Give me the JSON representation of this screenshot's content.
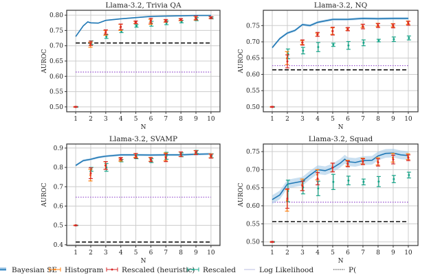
{
  "colors": {
    "bayesian": "#1f77b4",
    "band": "#a6cbe8",
    "histogram": "#ff7f0e",
    "heuristic": "#d62728",
    "rescaled": "#17a589",
    "dashed": "#111111",
    "dotted": "#9b59d0",
    "loglik": "#c5c8e6",
    "grid": "#cccccc"
  },
  "legend": [
    {
      "label": "Bayesian SE",
      "kind": "band"
    },
    {
      "label": "Histogram",
      "kind": "histogram"
    },
    {
      "label": "Rescaled (heuristic)",
      "kind": "heuristic"
    },
    {
      "label": "Rescaled",
      "kind": "rescaled"
    },
    {
      "label": "Log Likelihood",
      "kind": "loglik"
    },
    {
      "label": "P(",
      "kind": "dotted"
    }
  ],
  "chart_data": [
    {
      "type": "line",
      "title": "Llama-3.2, Trivia QA",
      "xlabel": "N",
      "ylabel": "AUROC",
      "ylim": [
        0.484,
        0.816
      ],
      "xlim": [
        0.4,
        10.6
      ],
      "xticks": [
        1,
        2,
        3,
        4,
        5,
        6,
        7,
        8,
        9,
        10
      ],
      "yticks": [
        "0.50",
        "0.55",
        "0.60",
        "0.65",
        "0.70",
        "0.75",
        "0.80"
      ],
      "grid": true,
      "bayesian": {
        "x": [
          1,
          1.5,
          1.8,
          2,
          2.5,
          3,
          4,
          5,
          6,
          7,
          8,
          9,
          10
        ],
        "y": [
          0.73,
          0.765,
          0.778,
          0.775,
          0.774,
          0.783,
          0.788,
          0.792,
          0.796,
          0.797,
          0.798,
          0.799,
          0.799
        ],
        "band": 0.002
      },
      "histogram": {
        "y": [
          0.5,
          0.703,
          0.742,
          0.76,
          0.776,
          0.778,
          0.781,
          0.785,
          0.79,
          0.792
        ],
        "err": [
          0.001,
          0.008,
          0.008,
          0.01,
          0.004,
          0.008,
          0.004,
          0.003,
          0.006,
          0.003
        ]
      },
      "heuristic": {
        "y": [
          0.5,
          0.708,
          0.745,
          0.762,
          0.777,
          0.782,
          0.782,
          0.786,
          0.791,
          0.792
        ],
        "err": [
          0.001,
          0.007,
          0.007,
          0.009,
          0.004,
          0.008,
          0.004,
          0.003,
          0.006,
          0.003
        ]
      },
      "rescaled": {
        "y": [
          0.5,
          0.71,
          0.73,
          0.748,
          0.765,
          0.772,
          0.775,
          0.779,
          0.787,
          0.791
        ],
        "err": [
          0.001,
          0.006,
          0.006,
          0.005,
          0.004,
          0.008,
          0.006,
          0.004,
          0.005,
          0.003
        ]
      },
      "dashed": 0.709,
      "dotted": 0.614
    },
    {
      "type": "line",
      "title": "Llama-3.2, NQ",
      "xlabel": "N",
      "ylabel": "AUROC",
      "ylim": [
        0.485,
        0.797
      ],
      "xlim": [
        0.41,
        10.64
      ],
      "xticks": [
        1,
        2,
        3,
        4,
        5,
        6,
        7,
        8,
        9,
        10
      ],
      "yticks": [
        "0.50",
        "0.55",
        "0.60",
        "0.65",
        "0.70",
        "0.75"
      ],
      "grid": true,
      "bayesian": {
        "x": [
          1,
          1.5,
          2,
          2.5,
          3,
          3.5,
          4,
          5,
          6,
          7,
          8,
          9,
          10
        ],
        "y": [
          0.682,
          0.71,
          0.727,
          0.735,
          0.753,
          0.75,
          0.76,
          0.769,
          0.769,
          0.772,
          0.771,
          0.772,
          0.772
        ],
        "band": 0.004
      },
      "histogram": {
        "y": [
          0.5,
          0.65,
          0.698,
          0.722,
          0.733,
          0.739,
          0.749,
          0.752,
          0.751,
          0.759
        ],
        "err": [
          0.001,
          0.02,
          0.006,
          0.005,
          0.01,
          0.004,
          0.005,
          0.005,
          0.005,
          0.005
        ]
      },
      "heuristic": {
        "y": [
          0.5,
          0.64,
          0.698,
          0.723,
          0.733,
          0.739,
          0.747,
          0.75,
          0.749,
          0.757
        ],
        "err": [
          0.001,
          0.02,
          0.008,
          0.006,
          0.012,
          0.005,
          0.007,
          0.006,
          0.006,
          0.006
        ]
      },
      "rescaled": {
        "y": [
          0.5,
          0.663,
          0.673,
          0.684,
          0.691,
          0.689,
          0.697,
          0.704,
          0.708,
          0.712
        ],
        "err": [
          0.001,
          0.015,
          0.01,
          0.014,
          0.005,
          0.012,
          0.009,
          0.004,
          0.007,
          0.006
        ]
      },
      "dashed": 0.614,
      "dotted": 0.627
    },
    {
      "type": "line",
      "title": "Llama-3.2, SVAMP",
      "xlabel": "N",
      "ylabel": "AUROC",
      "ylim": [
        0.396,
        0.921
      ],
      "xlim": [
        0.4,
        10.6
      ],
      "xticks": [
        1,
        2,
        3,
        4,
        5,
        6,
        7,
        8,
        9,
        10
      ],
      "yticks": [
        "0.4",
        "0.5",
        "0.6",
        "0.7",
        "0.8",
        "0.9"
      ],
      "grid": true,
      "bayesian": {
        "x": [
          1,
          1.5,
          2,
          2.5,
          3,
          4,
          5,
          6,
          7,
          8,
          9,
          10
        ],
        "y": [
          0.81,
          0.835,
          0.842,
          0.852,
          0.858,
          0.865,
          0.865,
          0.864,
          0.865,
          0.865,
          0.868,
          0.87
        ],
        "band": 0.006
      },
      "histogram": {
        "y": [
          0.5,
          0.76,
          0.81,
          0.84,
          0.862,
          0.842,
          0.855,
          0.868,
          0.877,
          0.86
        ],
        "err": [
          0.001,
          0.03,
          0.02,
          0.008,
          0.01,
          0.01,
          0.02,
          0.012,
          0.01,
          0.01
        ]
      },
      "heuristic": {
        "y": [
          0.5,
          0.77,
          0.81,
          0.845,
          0.86,
          0.84,
          0.85,
          0.868,
          0.876,
          0.858
        ],
        "err": [
          0.001,
          0.028,
          0.02,
          0.006,
          0.012,
          0.01,
          0.02,
          0.012,
          0.01,
          0.01
        ]
      },
      "rescaled": {
        "y": [
          0.5,
          0.79,
          0.8,
          0.835,
          0.855,
          0.835,
          0.86,
          0.865,
          0.88,
          0.86
        ],
        "err": [
          0.001,
          0.01,
          0.02,
          0.006,
          0.01,
          0.01,
          0.018,
          0.01,
          0.008,
          0.01
        ]
      },
      "dashed": 0.414,
      "dotted": 0.646
    },
    {
      "type": "line",
      "title": "Llama-3.2, Squad",
      "xlabel": "N",
      "ylabel": "AUROC",
      "ylim": [
        0.49,
        0.771
      ],
      "xlim": [
        0.41,
        10.64
      ],
      "xticks": [
        1,
        2,
        3,
        4,
        5,
        6,
        7,
        8,
        9,
        10
      ],
      "yticks": [
        "0.50",
        "0.55",
        "0.60",
        "0.65",
        "0.70",
        "0.75"
      ],
      "grid": true,
      "bayesian": {
        "x": [
          1,
          1.5,
          2,
          2.5,
          3,
          3.5,
          4,
          4.5,
          5,
          5.5,
          5.8,
          6,
          6.5,
          7,
          7.6,
          8,
          8.5,
          9,
          9.5,
          10
        ],
        "y": [
          0.617,
          0.63,
          0.66,
          0.664,
          0.668,
          0.685,
          0.7,
          0.697,
          0.705,
          0.718,
          0.729,
          0.722,
          0.72,
          0.725,
          0.726,
          0.738,
          0.745,
          0.746,
          0.741,
          0.739
        ],
        "band": 0.012
      },
      "histogram": {
        "y": [
          0.5,
          0.615,
          0.658,
          0.686,
          0.706,
          0.718,
          0.724,
          0.723,
          0.733,
          0.736
        ],
        "err": [
          0.001,
          0.03,
          0.016,
          0.014,
          0.012,
          0.008,
          0.008,
          0.01,
          0.012,
          0.008
        ]
      },
      "heuristic": {
        "y": [
          0.5,
          0.62,
          0.655,
          0.675,
          0.706,
          0.716,
          0.722,
          0.72,
          0.728,
          0.733
        ],
        "err": [
          0.001,
          0.027,
          0.013,
          0.017,
          0.012,
          0.008,
          0.008,
          0.01,
          0.012,
          0.008
        ]
      },
      "rescaled": {
        "y": [
          0.5,
          0.641,
          0.651,
          0.648,
          0.666,
          0.67,
          0.666,
          0.667,
          0.674,
          0.685
        ],
        "err": [
          0.001,
          0.03,
          0.018,
          0.02,
          0.021,
          0.012,
          0.008,
          0.014,
          0.01,
          0.008
        ]
      },
      "dashed": 0.556,
      "dotted": 0.61
    }
  ]
}
